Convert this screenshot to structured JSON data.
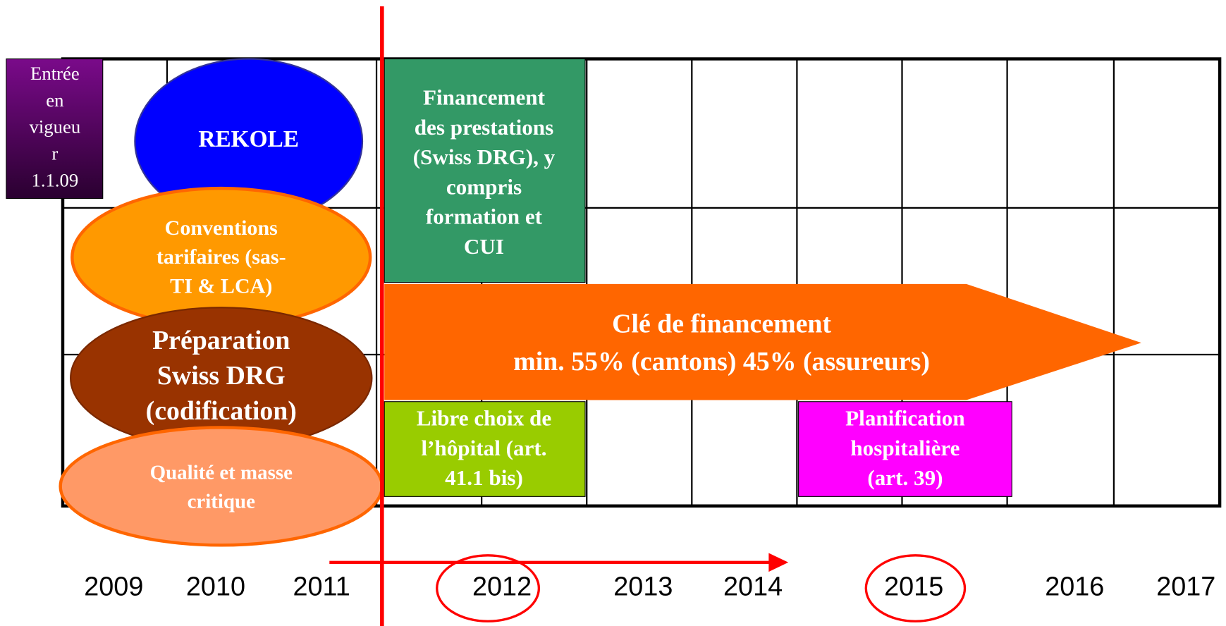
{
  "entry_box": {
    "lines": [
      "Entrée",
      "en",
      "vigueu",
      "r",
      "1.1.09"
    ]
  },
  "ellipses": [
    {
      "lines": [
        "REKOLE"
      ]
    },
    {
      "lines": [
        "Conventions",
        "tarifaires (sas-",
        "TI & LCA)"
      ]
    },
    {
      "lines": [
        "Préparation",
        "Swiss DRG",
        "(codification)"
      ]
    },
    {
      "lines": [
        "Qualité et masse",
        "critique"
      ]
    }
  ],
  "boxes": [
    {
      "lines": [
        "Financement",
        "des prestations",
        "(Swiss DRG), y",
        "compris",
        "formation et",
        "CUI"
      ]
    },
    {
      "lines": [
        "Libre choix de",
        "l’hôpital (art.",
        "41.1 bis)"
      ]
    },
    {
      "lines": [
        "Planification",
        "hospitalière",
        "(art. 39)"
      ]
    }
  ],
  "arrow": {
    "lines": [
      "Clé de financement",
      "min. 55% (cantons) 45% (assureurs)"
    ]
  },
  "years": [
    "2009",
    "2010",
    "2011",
    "2012",
    "2013",
    "2014",
    "2015",
    "2016",
    "2017"
  ]
}
